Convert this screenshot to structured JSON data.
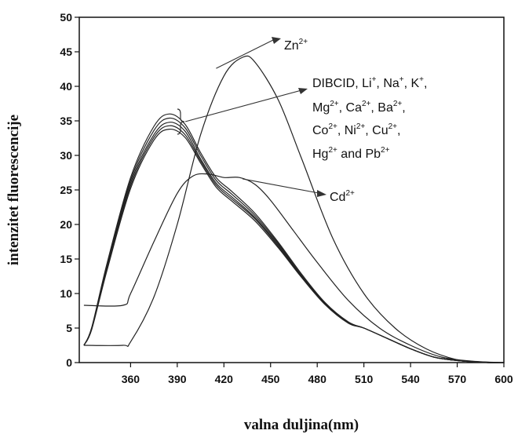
{
  "chart_data": {
    "type": "line",
    "xlabel": "valna duljina(nm)",
    "ylabel": "intenzitet fluorescencije",
    "xlim": [
      327,
      600
    ],
    "ylim": [
      0,
      50
    ],
    "xticks": [
      360,
      390,
      420,
      450,
      480,
      510,
      540,
      570,
      600
    ],
    "yticks": [
      0,
      5,
      10,
      15,
      20,
      25,
      30,
      35,
      40,
      45,
      50
    ],
    "series": [
      {
        "name": "Zn2+",
        "x": [
          330,
          355,
          360,
          375,
          390,
          405,
          420,
          432,
          440,
          455,
          470,
          490,
          510,
          530,
          550,
          570,
          585,
          600
        ],
        "y": [
          2.5,
          2.5,
          3.0,
          9.5,
          20.0,
          33.0,
          41.5,
          44.2,
          43.5,
          38.0,
          29.5,
          18.0,
          10.0,
          5.0,
          2.0,
          0.4,
          0.1,
          0.0
        ]
      },
      {
        "name": "Cd2+",
        "x": [
          330,
          355,
          360,
          375,
          390,
          400,
          410,
          420,
          430,
          440,
          450,
          465,
          480,
          500,
          520,
          540,
          560,
          580,
          600
        ],
        "y": [
          8.3,
          8.3,
          10.0,
          17.5,
          24.5,
          27.0,
          27.3,
          26.8,
          26.8,
          25.8,
          23.5,
          19.0,
          14.5,
          9.0,
          5.0,
          2.5,
          0.8,
          0.2,
          0.0
        ]
      },
      {
        "name": "DIBCID",
        "x": [
          330,
          335,
          345,
          360,
          375,
          385,
          395,
          405,
          415,
          425,
          440,
          455,
          470,
          485,
          500,
          510,
          525,
          540,
          555,
          570,
          590,
          600
        ],
        "y": [
          2.5,
          5.0,
          14.0,
          26.0,
          33.0,
          34.8,
          33.5,
          29.5,
          26.0,
          24.0,
          21.0,
          17.0,
          12.5,
          8.5,
          5.8,
          5.0,
          3.5,
          2.0,
          0.8,
          0.3,
          0.0,
          0.0
        ]
      },
      {
        "name": "Li+",
        "x": [
          330,
          335,
          345,
          360,
          375,
          385,
          395,
          405,
          415,
          425,
          440,
          455,
          470,
          485,
          500,
          510,
          525,
          540,
          555,
          570,
          590,
          600
        ],
        "y": [
          2.5,
          5.0,
          14.2,
          26.4,
          33.6,
          35.4,
          34.0,
          30.0,
          26.4,
          24.4,
          21.3,
          17.2,
          12.6,
          8.6,
          5.8,
          5.0,
          3.5,
          2.0,
          0.8,
          0.3,
          0.0,
          0.0
        ]
      },
      {
        "name": "Mg2+",
        "x": [
          330,
          335,
          345,
          360,
          375,
          385,
          395,
          405,
          415,
          425,
          440,
          455,
          470,
          485,
          500,
          510,
          525,
          540,
          555,
          570,
          590,
          600
        ],
        "y": [
          2.5,
          5.1,
          14.5,
          26.8,
          34.2,
          36.0,
          34.5,
          30.4,
          26.8,
          24.8,
          21.6,
          17.4,
          12.8,
          8.7,
          5.9,
          5.0,
          3.5,
          2.0,
          0.8,
          0.3,
          0.0,
          0.0
        ]
      },
      {
        "name": "Co2+",
        "x": [
          330,
          335,
          345,
          360,
          375,
          385,
          395,
          405,
          415,
          425,
          440,
          455,
          470,
          485,
          500,
          510,
          525,
          540,
          555,
          570,
          590,
          600
        ],
        "y": [
          2.5,
          4.9,
          13.8,
          25.6,
          32.6,
          34.3,
          33.0,
          29.2,
          25.7,
          23.7,
          20.8,
          16.8,
          12.4,
          8.5,
          5.8,
          5.0,
          3.5,
          2.0,
          0.8,
          0.3,
          0.0,
          0.0
        ]
      },
      {
        "name": "Hg2+",
        "x": [
          330,
          335,
          345,
          360,
          375,
          385,
          395,
          405,
          415,
          425,
          440,
          455,
          470,
          485,
          500,
          510,
          525,
          540,
          555,
          570,
          590,
          600
        ],
        "y": [
          2.5,
          4.8,
          13.5,
          25.2,
          32.2,
          33.8,
          32.6,
          28.9,
          25.4,
          23.4,
          20.5,
          16.6,
          12.3,
          8.4,
          5.7,
          5.0,
          3.5,
          2.0,
          0.8,
          0.3,
          0.0,
          0.0
        ]
      }
    ],
    "annotations": [
      {
        "base": "Zn",
        "sup": "2+"
      },
      {
        "lines": [
          [
            [
              "DIBCID, Li",
              ""
            ],
            [
              "",
              "+"
            ],
            [
              ", Na",
              ""
            ],
            [
              "",
              "+"
            ],
            [
              ", K",
              ""
            ],
            [
              "",
              "+"
            ],
            [
              ",",
              ""
            ]
          ],
          [
            [
              "Mg",
              ""
            ],
            [
              "",
              "2+"
            ],
            [
              ", Ca",
              ""
            ],
            [
              "",
              "2+"
            ],
            [
              ", Ba",
              ""
            ],
            [
              "",
              "2+"
            ],
            [
              ",",
              ""
            ]
          ],
          [
            [
              "Co",
              ""
            ],
            [
              "",
              "2+"
            ],
            [
              ", Ni",
              ""
            ],
            [
              "",
              "2+"
            ],
            [
              ", Cu",
              ""
            ],
            [
              "",
              "2+"
            ],
            [
              ",",
              ""
            ]
          ],
          [
            [
              "Hg",
              ""
            ],
            [
              "",
              "2+"
            ],
            [
              " and Pb",
              ""
            ],
            [
              "",
              "2+"
            ]
          ]
        ]
      },
      {
        "base": "Cd",
        "sup": "2+"
      }
    ],
    "grid": false,
    "legend": "none"
  }
}
